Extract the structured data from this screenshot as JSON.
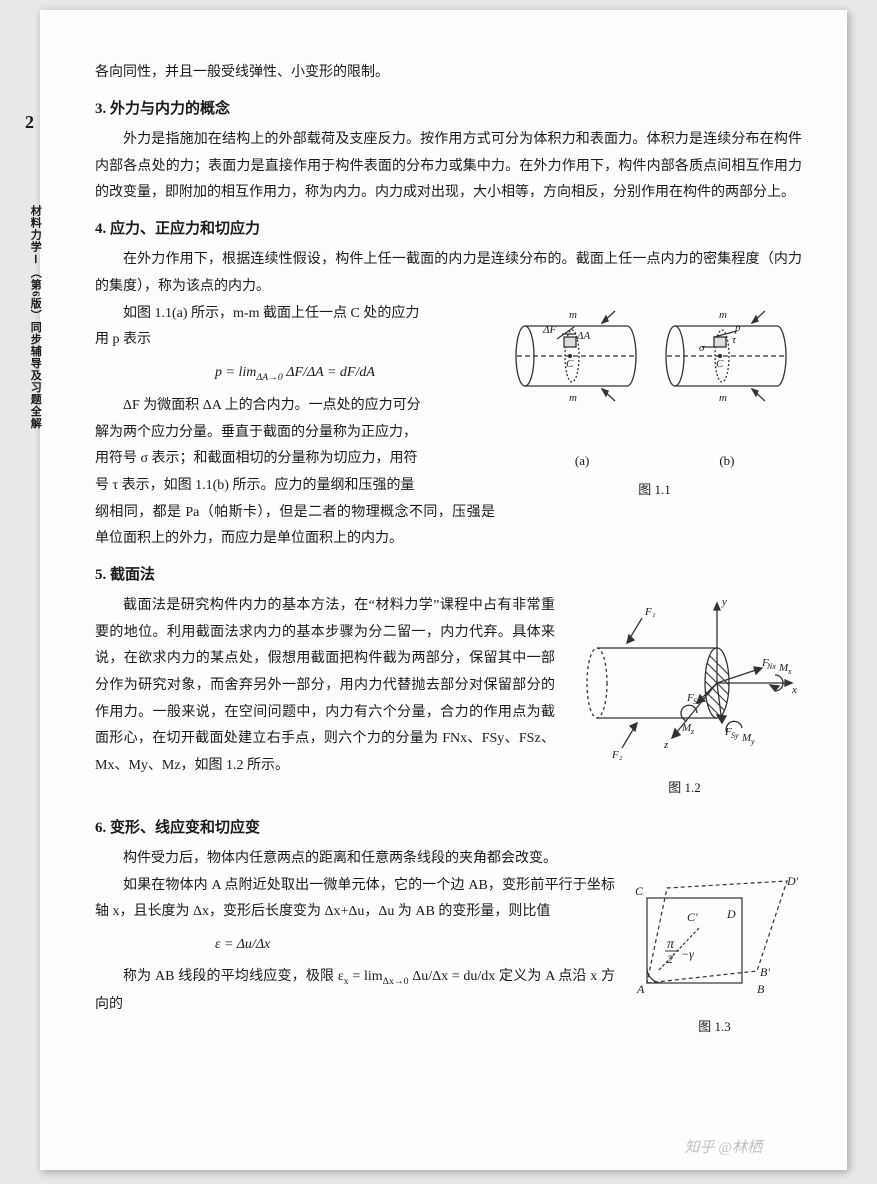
{
  "page_number": "2",
  "side_title": "材料力学Ⅰ（第6版）同步辅导及习题全解",
  "top_line": "各向同性，并且一般受线弹性、小变形的限制。",
  "sec3": {
    "heading": "3. 外力与内力的概念",
    "p1": "外力是指施加在结构上的外部载荷及支座反力。按作用方式可分为体积力和表面力。体积力是连续分布在构件内部各点处的力；表面力是直接作用于构件表面的分布力或集中力。在外力作用下，构件内部各质点间相互作用力的改变量，即附加的相互作用力，称为内力。内力成对出现，大小相等，方向相反，分别作用在构件的两部分上。"
  },
  "sec4": {
    "heading": "4. 应力、正应力和切应力",
    "p1": "在外力作用下，根据连续性假设，构件上任一截面的内力是连续分布的。截面上任一点内力的密集程度（内力的集度），称为该点的内力。",
    "p2a": "如图 1.1(a) 所示，m-m 截面上任一点 C 处的应力",
    "p2b": "用 p 表示",
    "formula1_html": "p = lim<sub class='l'>ΔA→0</sub> ΔF/ΔA = dF/dA",
    "p3a": "ΔF 为微面积 ΔA 上的合内力。一点处的应力可分",
    "p3b": "解为两个应力分量。垂直于截面的分量称为正应力，",
    "p3c": "用符号 σ 表示；和截面相切的分量称为切应力，用符",
    "p3d": "号 τ 表示，如图 1.1(b) 所示。应力的量纲和压强的量",
    "p3e": "纲相同，都是 Pa（帕斯卡），但是二者的物理概念不同，压强是单位面积上的外力，而应力是单位面积上的内力。",
    "fig_a": "(a)",
    "fig_b": "(b)",
    "fig_caption": "图 1.1"
  },
  "sec5": {
    "heading": "5. 截面法",
    "p1": "截面法是研究构件内力的基本方法，在“材料力学”课程中占有非常重要的地位。利用截面法求内力的基本步骤为分二留一，内力代弃。具体来说，在欲求内力的某点处，假想用截面把构件截为两部分，保留其中一部分作为研究对象，而舍弃另外一部分，用内力代替抛去部分对保留部分的作用力。一般来说，在空间问题中，内力有六个分量，合力的作用点为截面形心，在切开截面处建立右手点，则六个力的分量为 FNx、FSy、FSz、Mx、My、Mz，如图 1.2 所示。",
    "fig_caption": "图 1.2"
  },
  "sec6": {
    "heading": "6. 变形、线应变和切应变",
    "p1": "构件受力后，物体内任意两点的距离和任意两条线段的夹角都会改变。",
    "p2": "如果在物体内 A 点附近处取出一微单元体，它的一个边 AB，变形前平行于坐标轴 x，且长度为 Δx，变形后长度变为 Δx+Δu，Δu 为 AB 的变形量，则比值",
    "formula2_html": "ε = Δu/Δx",
    "p3_html": "称为 AB 线段的平均线应变，极限 ε<sub class='l'>x</sub> = lim<sub class='l'>Δx→0</sub> Δu/Δx = du/dx 定义为 A 点沿 x 方向的",
    "fig_caption": "图 1.3"
  },
  "watermark": "知乎 @林栖",
  "colors": {
    "text": "#1a1a1a",
    "bg": "#fdfdfd",
    "shadow": "rgba(0,0,0,0.3)",
    "watermark": "#aaaaaa",
    "fig_stroke": "#333333"
  },
  "figures": {
    "fig1_1": {
      "type": "diagram",
      "description": "two cylinders side-by-side showing m-m section, point C, ΔF/ΔA in (a) and p/σ/τ decomposition in (b)",
      "labels": [
        "m",
        "m",
        "ΔF",
        "ΔA",
        "C",
        "p",
        "τ",
        "σ",
        "C"
      ],
      "stroke": "#333333",
      "stroke_width": 1.3,
      "hatch_spacing": 4
    },
    "fig1_2": {
      "type": "diagram",
      "description": "cylinder cut with hatched cross-section, coord axes xyz, forces F1 F2 FNx FSy FSz and moments Mx My Mz",
      "labels": [
        "F1",
        "F2",
        "FNx",
        "FSy",
        "FSz",
        "Mx",
        "My",
        "Mz",
        "x",
        "y",
        "z"
      ],
      "stroke": "#333333",
      "stroke_width": 1.3
    },
    "fig1_3": {
      "type": "diagram",
      "description": "square ABCD deformed to A B' C' D' with angle π/2−γ",
      "labels": [
        "A",
        "B",
        "C",
        "D",
        "B'",
        "C'",
        "D'",
        "π/2−γ"
      ],
      "stroke": "#333333",
      "stroke_width": 1.2,
      "dash": "4,3"
    }
  }
}
